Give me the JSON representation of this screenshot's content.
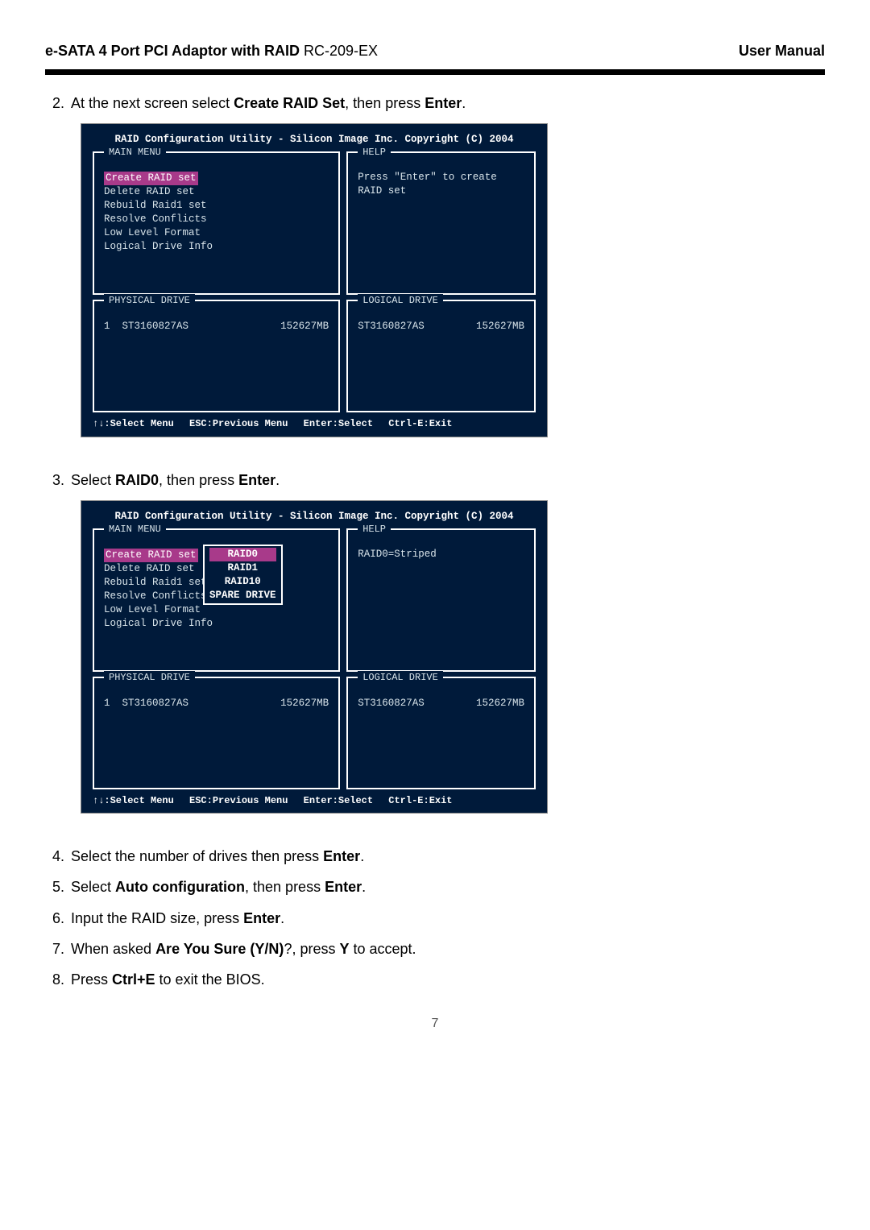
{
  "header": {
    "title_bold": "e-SATA 4 Port PCI Adaptor with RAID",
    "title_model": " RC-209-EX",
    "right": "User Manual"
  },
  "steps": {
    "s2": {
      "num": "2.",
      "pre": "At the next screen select ",
      "b1": "Create RAID Set",
      "mid": ", then press ",
      "b2": "Enter",
      "post": "."
    },
    "s3": {
      "num": "3.",
      "pre": "Select ",
      "b1": "RAID0",
      "mid": ", then press ",
      "b2": "Enter",
      "post": "."
    },
    "s4": {
      "num": "4.",
      "pre": "Select the number of drives then press ",
      "b1": "Enter",
      "post": "."
    },
    "s5": {
      "num": "5.",
      "pre": "Select ",
      "b1": "Auto configuration",
      "mid": ", then press ",
      "b2": "Enter",
      "post": "."
    },
    "s6": {
      "num": "6.",
      "pre": "Input the RAID size, press ",
      "b1": "Enter",
      "post": "."
    },
    "s7": {
      "num": "7.",
      "pre": "When asked ",
      "b1": "Are You Sure (Y/N)",
      "mid": "?, press ",
      "b2": "Y",
      "post": " to accept."
    },
    "s8": {
      "num": "8.",
      "pre": "Press ",
      "b1": "Ctrl+E",
      "post": " to exit the BIOS."
    }
  },
  "bios_shared": {
    "title": "RAID Configuration Utility - Silicon Image Inc. Copyright (C) 2004",
    "labels": {
      "main_menu": "MAIN MENU",
      "help": "HELP",
      "physical": "PHYSICAL DRIVE",
      "logical": "LOGICAL DRIVE"
    },
    "menu": {
      "m1": "Create RAID set",
      "m2": "Delete RAID set",
      "m3": "Rebuild Raid1 set",
      "m4": "Resolve Conflicts",
      "m5": "Low Level Format",
      "m6": "Logical Drive Info"
    },
    "physical": {
      "idx": "1",
      "model": "ST3160827AS",
      "size": "152627MB"
    },
    "logical": {
      "model": "ST3160827AS",
      "size": "152627MB"
    },
    "footer": {
      "f1": "↑↓:Select Menu",
      "f2": "ESC:Previous Menu",
      "f3": "Enter:Select",
      "f4": "Ctrl-E:Exit"
    }
  },
  "bios1": {
    "help_line1": "Press \"Enter\" to create",
    "help_line2": "RAID set"
  },
  "bios2": {
    "help_line1": "RAID0=Striped",
    "submenu": {
      "r0": "RAID0",
      "r1": "RAID1",
      "r10": "RAID10",
      "spare": "SPARE DRIVE"
    }
  },
  "page_number": "7"
}
